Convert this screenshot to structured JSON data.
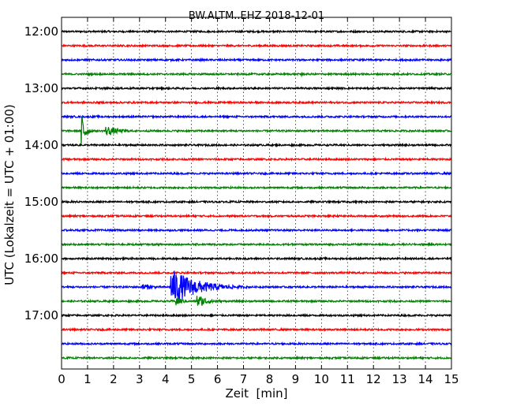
{
  "chart_data": {
    "type": "line",
    "title": "BW.ALTM..EHZ 2018-12-01",
    "xlabel": "Zeit  [min]",
    "ylabel": "UTC (Lokalzeit = UTC + 01:00)",
    "xlim": [
      0,
      15
    ],
    "x_ticks": [
      0,
      1,
      2,
      3,
      4,
      5,
      6,
      7,
      8,
      9,
      10,
      11,
      12,
      13,
      14,
      15
    ],
    "x_tick_labels": [
      "0",
      "1",
      "2",
      "3",
      "4",
      "5",
      "6",
      "7",
      "8",
      "9",
      "10",
      "11",
      "12",
      "13",
      "14",
      "15"
    ],
    "hour_tick_labels": [
      "12:00",
      "13:00",
      "14:00",
      "15:00",
      "16:00",
      "17:00"
    ],
    "grid": true,
    "trace_colors": [
      "#000000",
      "#ff0000",
      "#0000ff",
      "#008000"
    ],
    "series": [
      {
        "values": [],
        "events": []
      },
      {
        "values": [],
        "events": []
      },
      {
        "values": [],
        "events": []
      },
      {
        "values": [],
        "events": [
          {
            "t": 9.2,
            "amp": 0.35,
            "dur": 0.15
          }
        ]
      },
      {
        "values": [],
        "events": []
      },
      {
        "values": [],
        "events": []
      },
      {
        "values": [],
        "events": []
      },
      {
        "values": [],
        "events": [
          {
            "t": 0.75,
            "amp": 1.9,
            "dur": 0.35
          },
          {
            "t": 1.7,
            "amp": 0.4,
            "dur": 1.3
          }
        ]
      },
      {
        "values": [],
        "events": []
      },
      {
        "values": [],
        "events": []
      },
      {
        "values": [],
        "events": []
      },
      {
        "values": [],
        "events": []
      },
      {
        "values": [],
        "events": []
      },
      {
        "values": [],
        "events": []
      },
      {
        "values": [],
        "events": []
      },
      {
        "values": [],
        "events": []
      },
      {
        "values": [],
        "events": []
      },
      {
        "values": [],
        "events": []
      },
      {
        "values": [],
        "events": [
          {
            "t": 3.1,
            "amp": 0.3,
            "dur": 1.0
          },
          {
            "t": 4.2,
            "amp": 1.35,
            "dur": 2.5
          }
        ]
      },
      {
        "values": [],
        "events": [
          {
            "t": 4.4,
            "amp": 0.45,
            "dur": 0.6
          },
          {
            "t": 5.2,
            "amp": 0.5,
            "dur": 1.2
          }
        ]
      },
      {
        "values": [],
        "events": []
      },
      {
        "values": [],
        "events": []
      },
      {
        "values": [],
        "events": []
      },
      {
        "values": [],
        "events": []
      }
    ]
  }
}
